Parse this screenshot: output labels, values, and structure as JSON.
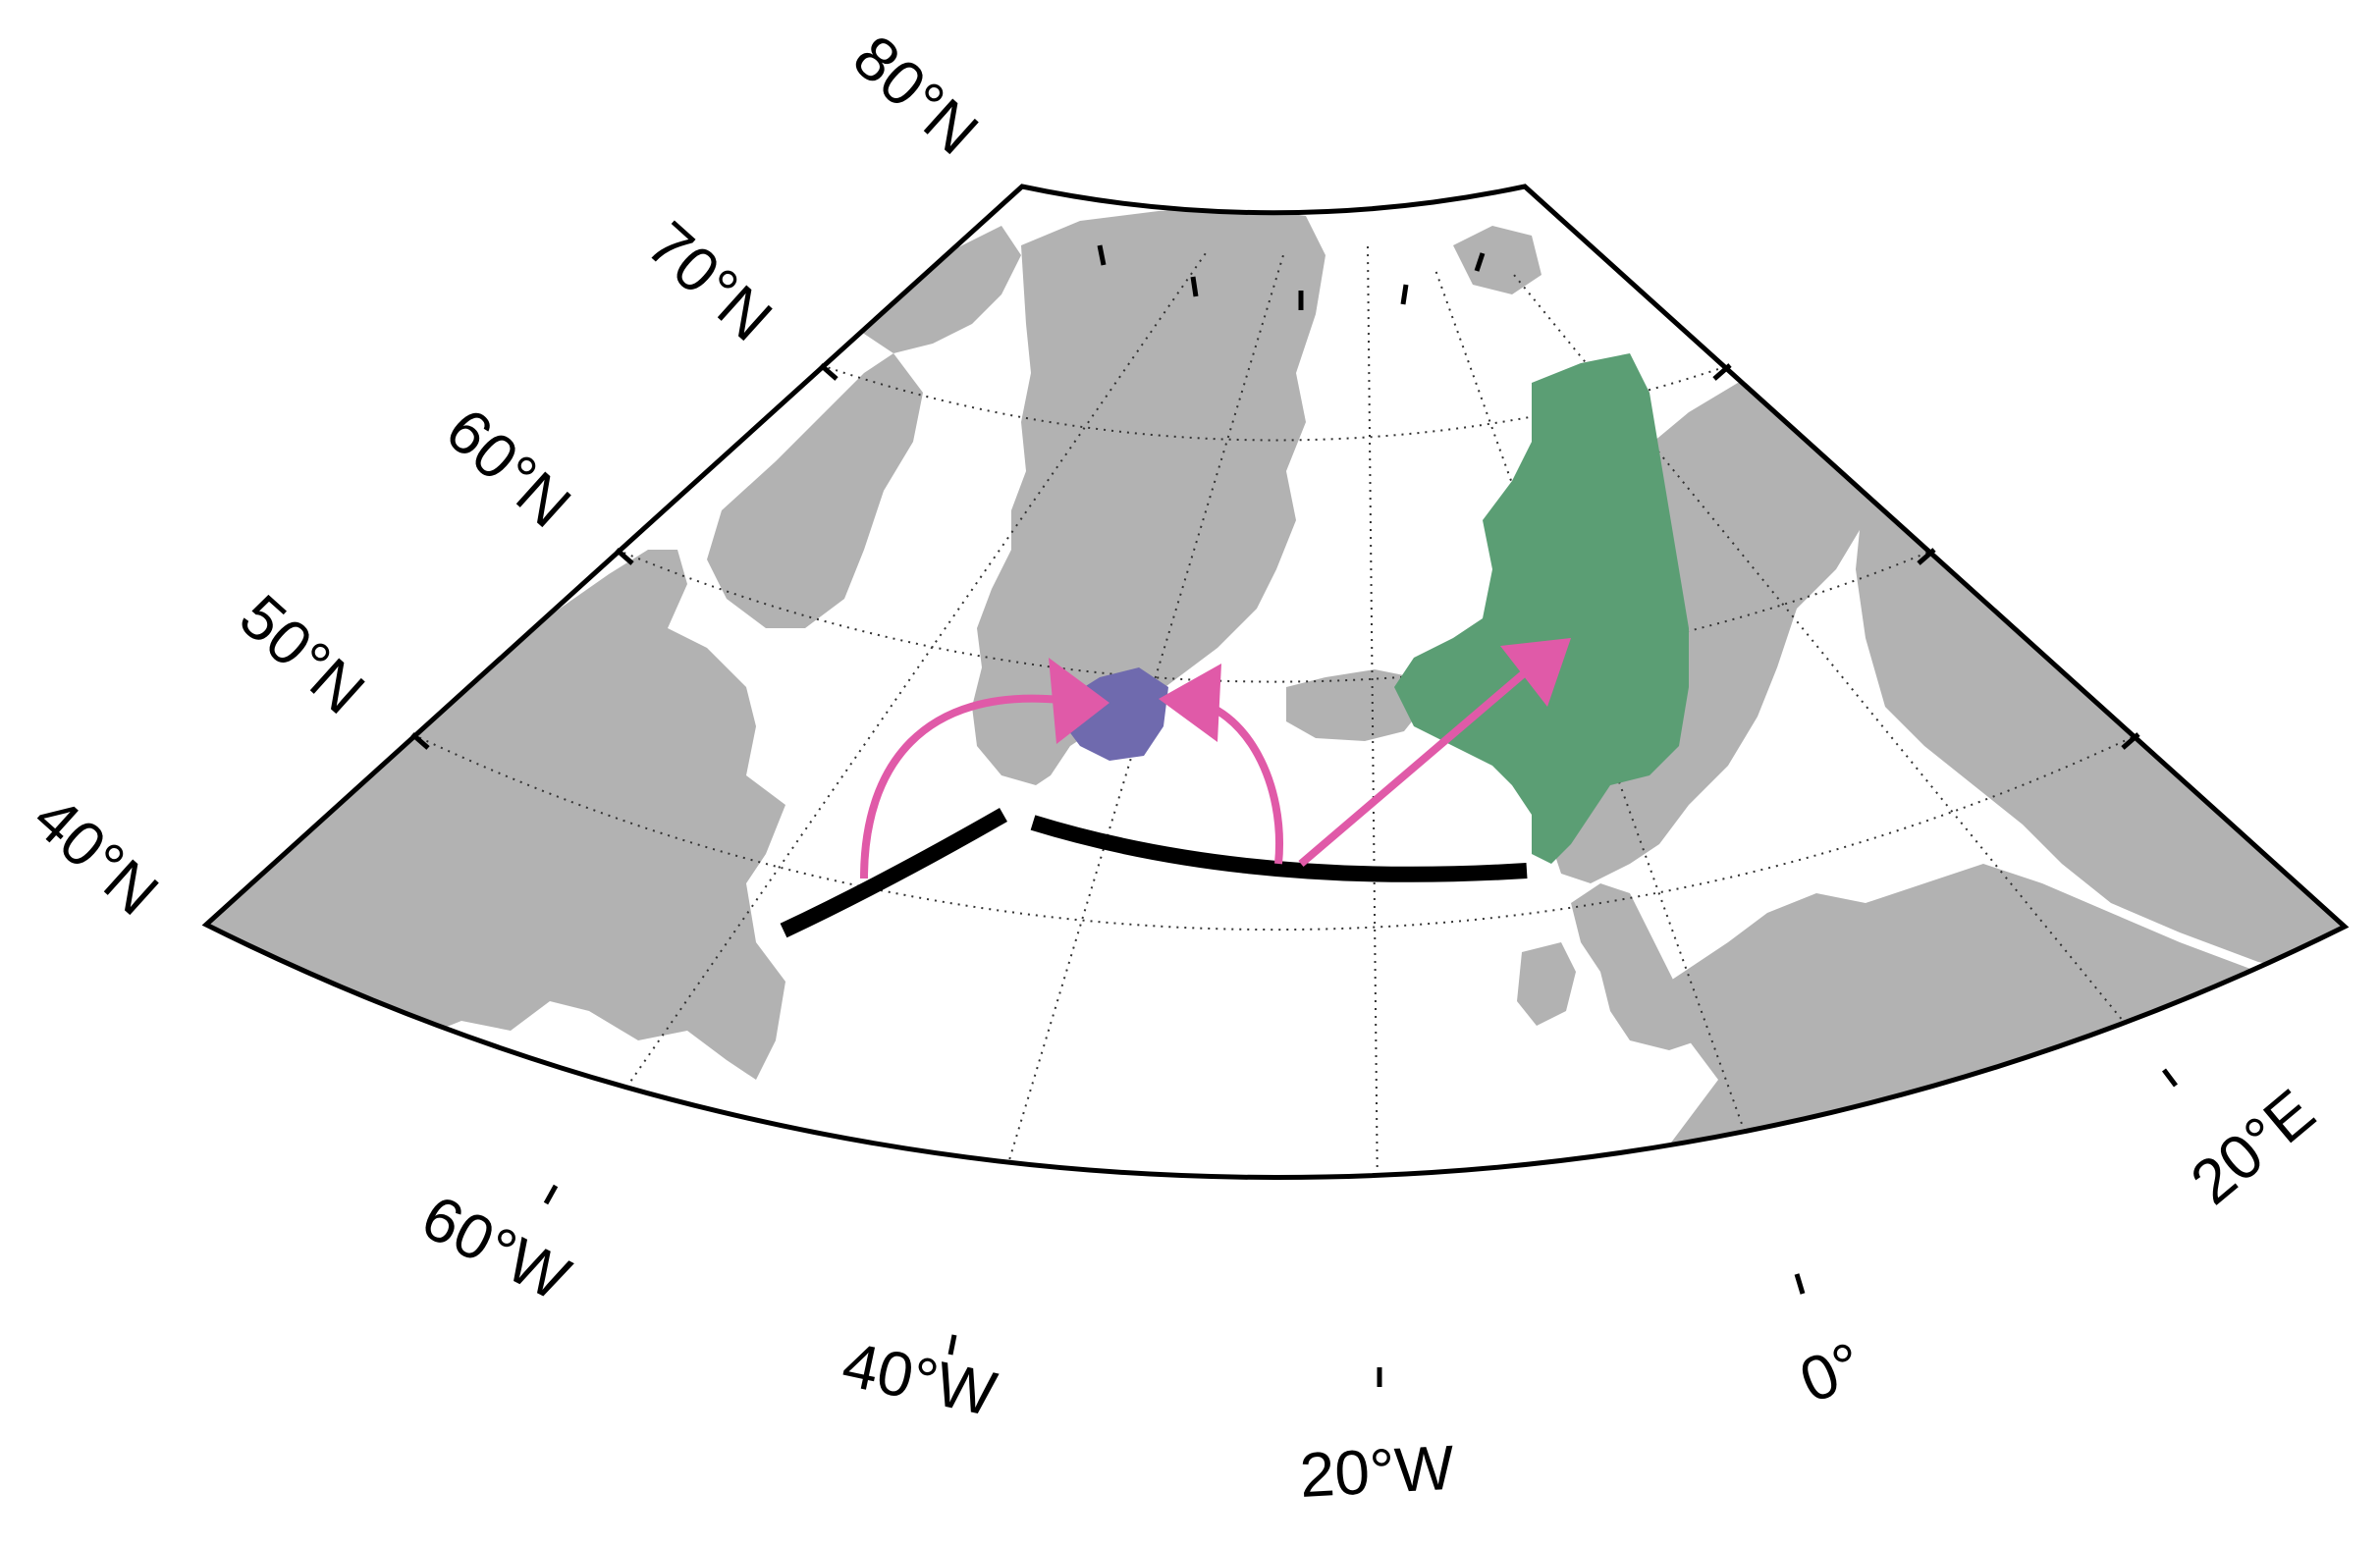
{
  "map": {
    "projection": "conic",
    "colors": {
      "land": "#b2b2b2",
      "ocean": "#ffffff",
      "frame": "#000000",
      "graticule": "#333333",
      "section_line": "#000000",
      "arrows": "#e05aa8",
      "region_labrador_sea": "#6f6aae",
      "region_nordic_seas": "#5b9e74"
    },
    "lat_labels": [
      {
        "id": "lat-40",
        "text": "40°N"
      },
      {
        "id": "lat-50",
        "text": "50°N"
      },
      {
        "id": "lat-60",
        "text": "60°N"
      },
      {
        "id": "lat-70",
        "text": "70°N"
      },
      {
        "id": "lat-80",
        "text": "80°N"
      }
    ],
    "lon_labels": [
      {
        "id": "lon-60w",
        "text": "60°W"
      },
      {
        "id": "lon-40w",
        "text": "40°W"
      },
      {
        "id": "lon-20w",
        "text": "20°W"
      },
      {
        "id": "lon-0",
        "text": "0°"
      },
      {
        "id": "lon-20e",
        "text": "20°E"
      }
    ]
  }
}
